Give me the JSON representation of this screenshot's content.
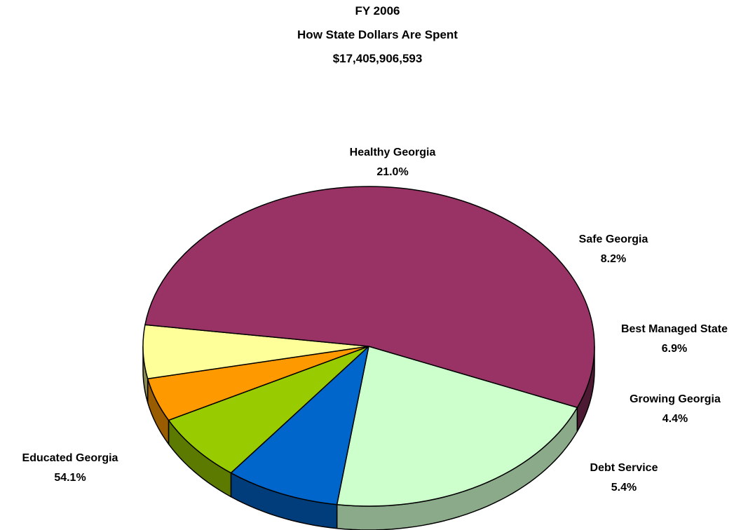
{
  "chart_data": {
    "type": "pie",
    "style": "3d",
    "title": [
      "FY 2006",
      "How State Dollars Are Spent",
      "$17,405,906,593"
    ],
    "legend": "none",
    "slices": [
      {
        "name": "Healthy Georgia",
        "value": 21.0,
        "label": "21.0%",
        "color": "#ccffcc",
        "side": "#8aaa8a"
      },
      {
        "name": "Safe Georgia",
        "value": 8.2,
        "label": "8.2%",
        "color": "#0066cc",
        "side": "#003d7a"
      },
      {
        "name": "Best Managed State",
        "value": 6.9,
        "label": "6.9%",
        "color": "#99cc00",
        "side": "#5c7a00"
      },
      {
        "name": "Growing Georgia",
        "value": 4.4,
        "label": "4.4%",
        "color": "#ff9900",
        "side": "#995c00"
      },
      {
        "name": "Debt Service",
        "value": 5.4,
        "label": "5.4%",
        "color": "#ffff99",
        "side": "#8a8a52"
      },
      {
        "name": "Educated Georgia",
        "value": 54.1,
        "label": "54.1%",
        "color": "#993366",
        "side": "#4d1a33"
      }
    ]
  }
}
